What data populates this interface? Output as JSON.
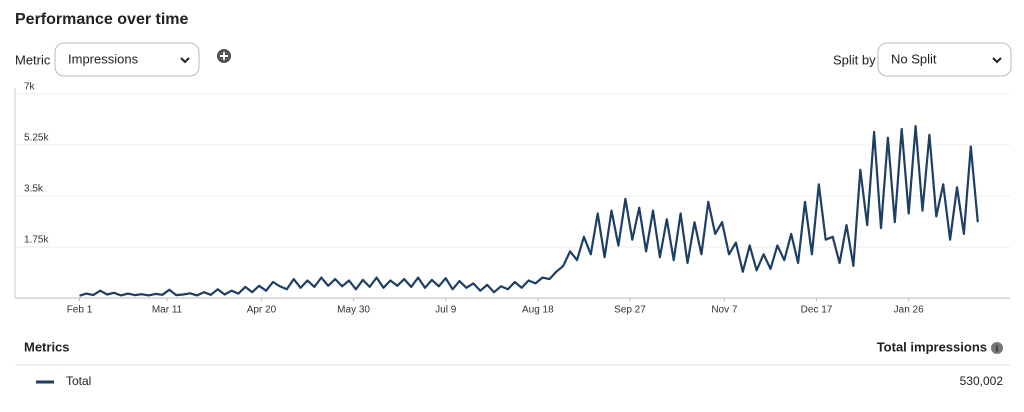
{
  "header": {
    "title": "Performance over time"
  },
  "controls": {
    "metric_label": "Metric",
    "metric_value": "Impressions",
    "split_label": "Split by",
    "split_value": "No Split"
  },
  "chart_data": {
    "type": "line",
    "color": "#1d3f63",
    "grid": true,
    "x": [
      0,
      3,
      6,
      9,
      12,
      15,
      18,
      21,
      24,
      27,
      30,
      33,
      36,
      39,
      42,
      45,
      48,
      51,
      54,
      57,
      60,
      63,
      66,
      69,
      72,
      75,
      78,
      81,
      84,
      87,
      90,
      93,
      96,
      99,
      102,
      105,
      108,
      111,
      114,
      117,
      120,
      123,
      126,
      129,
      132,
      135,
      138,
      141,
      144,
      147,
      150,
      153,
      156,
      159,
      162,
      165,
      168,
      171,
      174,
      177,
      180,
      183,
      186,
      189,
      192,
      195,
      198,
      201,
      204,
      207,
      210,
      213,
      216,
      219,
      222,
      225,
      228,
      231,
      234,
      237,
      240,
      243,
      246,
      249,
      252,
      255,
      258,
      261,
      264,
      267,
      270,
      273,
      276,
      279,
      282,
      285,
      288,
      291,
      294,
      297,
      300,
      303,
      306,
      309,
      312,
      315,
      318,
      321,
      324,
      327,
      330,
      333,
      336,
      339,
      342,
      345,
      348,
      351,
      354,
      357,
      360,
      363,
      366,
      369,
      372,
      375,
      378,
      381,
      384,
      387,
      390
    ],
    "values": [
      80,
      150,
      100,
      250,
      120,
      180,
      90,
      150,
      100,
      130,
      90,
      140,
      110,
      280,
      100,
      120,
      160,
      90,
      200,
      110,
      300,
      120,
      250,
      150,
      380,
      200,
      420,
      250,
      550,
      400,
      300,
      650,
      350,
      600,
      380,
      700,
      420,
      650,
      400,
      600,
      300,
      620,
      380,
      700,
      350,
      600,
      420,
      650,
      380,
      700,
      350,
      620,
      400,
      680,
      300,
      580,
      350,
      500,
      250,
      450,
      200,
      400,
      300,
      550,
      350,
      600,
      500,
      700,
      650,
      900,
      1100,
      1600,
      1300,
      2100,
      1500,
      2900,
      1400,
      3000,
      1800,
      3400,
      2000,
      3100,
      1600,
      3000,
      1400,
      2700,
      1300,
      2900,
      1200,
      2600,
      1500,
      3300,
      2200,
      2600,
      1500,
      1900,
      900,
      1800,
      950,
      1500,
      1000,
      1800,
      1300,
      2200,
      1200,
      3300,
      1500,
      3900,
      2000,
      2100,
      1200,
      2500,
      1100,
      4400,
      2500,
      5700,
      2400,
      5500,
      2600,
      5800,
      2900,
      5900,
      3000,
      5600,
      2800,
      3900,
      2000,
      3800,
      2200,
      5200,
      2600
    ],
    "xlim": [
      -28,
      404
    ],
    "xticks": [
      {
        "value": 0,
        "label": "Feb 1"
      },
      {
        "value": 38,
        "label": "Mar 11"
      },
      {
        "value": 79,
        "label": "Apr 20"
      },
      {
        "value": 119,
        "label": "May 30"
      },
      {
        "value": 159,
        "label": "Jul 9"
      },
      {
        "value": 199,
        "label": "Aug 18"
      },
      {
        "value": 239,
        "label": "Sep 27"
      },
      {
        "value": 280,
        "label": "Nov 7"
      },
      {
        "value": 320,
        "label": "Dec 17"
      },
      {
        "value": 360,
        "label": "Jan 26"
      }
    ],
    "ylim": [
      0,
      7000
    ],
    "yticks": [
      {
        "value": 1750,
        "label": "1.75k"
      },
      {
        "value": 3500,
        "label": "3.5k"
      },
      {
        "value": 5250,
        "label": "5.25k"
      },
      {
        "value": 7000,
        "label": "7k"
      }
    ]
  },
  "metrics_table": {
    "header": [
      "Metrics",
      "Total impressions"
    ],
    "rows": [
      [
        "Total",
        "530,002"
      ]
    ]
  }
}
